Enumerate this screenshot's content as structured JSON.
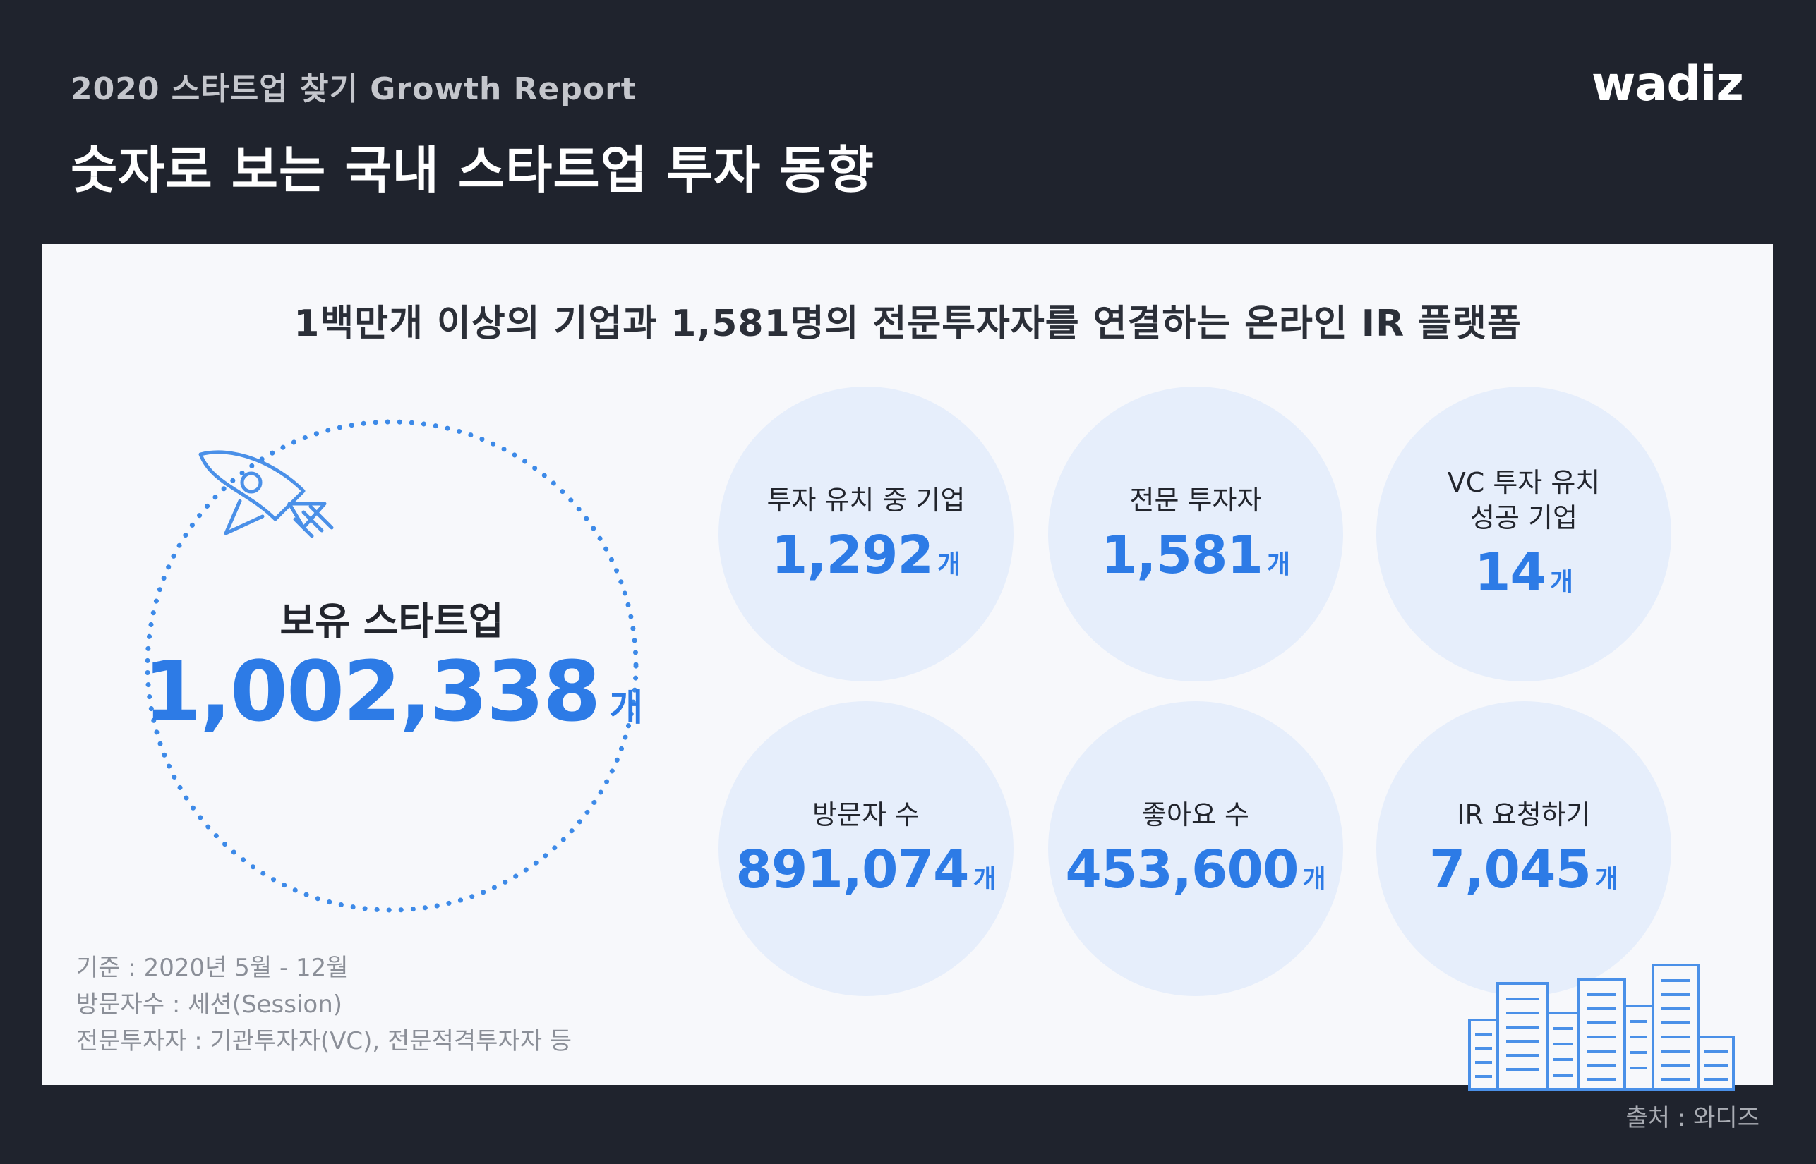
{
  "header": {
    "pretitle": "2020 스타트업 찾기 Growth Report",
    "brand": "wadiz",
    "title": "숫자로 보는 국내 스타트업 투자 동향"
  },
  "panel": {
    "subtitle": "1백만개 이상의 기업과 1,581명의 전문투자자를 연결하는 온라인 IR 플랫폼",
    "main_stat": {
      "label": "보유 스타트업",
      "value": "1,002,338",
      "unit": "개"
    },
    "stats": [
      {
        "label": "투자 유치 중 기업",
        "value": "1,292",
        "unit": "개"
      },
      {
        "label": "전문 투자자",
        "value": "1,581",
        "unit": "개"
      },
      {
        "label": "VC 투자 유치\n성공 기업",
        "value": "14",
        "unit": "개"
      },
      {
        "label": "방문자 수",
        "value": "891,074",
        "unit": "개"
      },
      {
        "label": "좋아요 수",
        "value": "453,600",
        "unit": "개"
      },
      {
        "label": "IR 요청하기",
        "value": "7,045",
        "unit": "개"
      }
    ],
    "notes": [
      "기준 : 2020년 5월 - 12월",
      "방문자수 : 세션(Session)",
      "전문투자자 : 기관투자자(VC), 전문적격투자자 등"
    ]
  },
  "footer": {
    "source": "출처 : 와디즈"
  },
  "colors": {
    "background": "#1f232d",
    "panel": "#f7f8fb",
    "accent": "#2d7be6",
    "circle_fill": "#e6eefb"
  },
  "icons": [
    "rocket-icon",
    "city-buildings-icon"
  ]
}
